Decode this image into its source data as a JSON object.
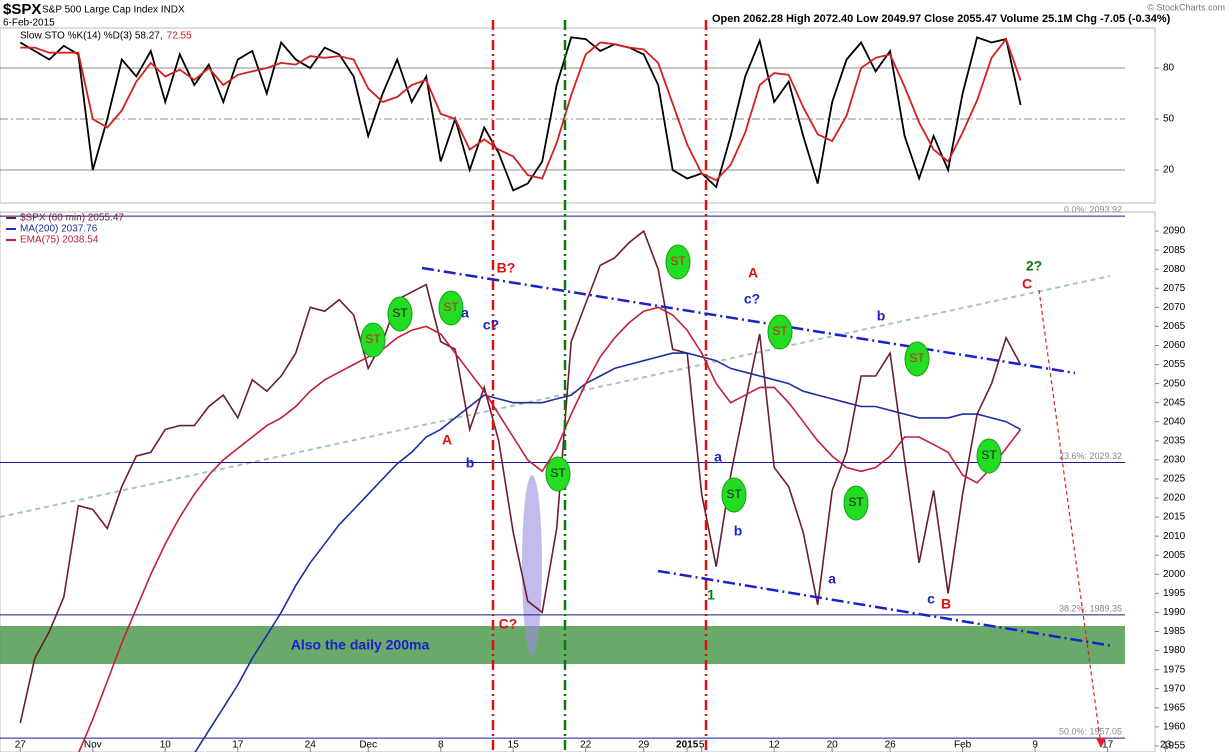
{
  "header": {
    "symbol": "$SPX",
    "name": "S&P 500 Large Cap Index INDX",
    "date": "6-Feb-2015",
    "quote": "Open 2062.28 High 2072.40 Low 2049.97 Close 2055.47 Volume 25.1M Chg -7.05 (-0.34%)",
    "credit": "© StockCharts.com"
  },
  "chart_data": [
    {
      "type": "line",
      "grid": true,
      "x": [
        0,
        1,
        2,
        3,
        4,
        5,
        6,
        7,
        8,
        9,
        10,
        11,
        12,
        13,
        14,
        15,
        16,
        17,
        18,
        19,
        20,
        21,
        22,
        23,
        24,
        25,
        26,
        27,
        28,
        29,
        30,
        31,
        32,
        33,
        34,
        35,
        36,
        37,
        38,
        39,
        40,
        41,
        42,
        43,
        44,
        45,
        46,
        47,
        48,
        49,
        50,
        51,
        52,
        53,
        54,
        55,
        56,
        57,
        58,
        59,
        60,
        61,
        62,
        63,
        64,
        65,
        66,
        67,
        68,
        69
      ],
      "xlim": [
        -1.4,
        76.2
      ],
      "ylim": [
        0.6,
        103.5
      ],
      "yticks": [
        20,
        50,
        80
      ],
      "series": [
        {
          "name": "Slow STO %K(14) %D(3) 58.27,",
          "color": "#000000",
          "values": [
            95,
            90,
            85,
            93,
            88,
            20,
            50,
            85,
            75,
            90,
            60,
            88,
            70,
            82,
            60,
            85,
            90,
            65,
            95,
            85,
            80,
            92,
            88,
            75,
            40,
            65,
            85,
            60,
            75,
            25,
            50,
            20,
            45,
            30,
            8,
            12,
            25,
            70,
            98,
            97,
            90,
            94,
            92,
            88,
            70,
            20,
            15,
            18,
            10,
            40,
            75,
            96,
            60,
            72,
            40,
            12,
            60,
            85,
            95,
            78,
            90,
            40,
            15,
            40,
            20,
            65,
            98,
            95,
            97,
            58.27
          ]
        },
        {
          "name": "72.55",
          "color": "#d42020",
          "values": [
            92,
            92,
            89,
            89,
            89,
            50,
            45,
            55,
            72,
            83,
            75,
            79,
            73,
            80,
            70,
            76,
            78,
            80,
            83,
            82,
            87,
            86,
            87,
            85,
            68,
            60,
            63,
            70,
            73,
            53,
            50,
            32,
            38,
            32,
            28,
            17,
            15,
            36,
            64,
            88,
            95,
            94,
            92,
            91,
            83,
            59,
            35,
            18,
            14,
            23,
            42,
            70,
            77,
            76,
            57,
            41,
            37,
            52,
            80,
            86,
            88,
            69,
            48,
            32,
            25,
            42,
            61,
            86,
            97,
            72.55
          ]
        }
      ]
    },
    {
      "type": "line",
      "grid": false,
      "x": [
        0,
        1,
        2,
        3,
        4,
        5,
        6,
        7,
        8,
        9,
        10,
        11,
        12,
        13,
        14,
        15,
        16,
        17,
        18,
        19,
        20,
        21,
        22,
        23,
        24,
        25,
        26,
        27,
        28,
        29,
        30,
        31,
        32,
        33,
        34,
        35,
        36,
        37,
        38,
        39,
        40,
        41,
        42,
        43,
        44,
        45,
        46,
        47,
        48,
        49,
        50,
        51,
        52,
        53,
        54,
        55,
        56,
        57,
        58,
        59,
        60,
        61,
        62,
        63,
        64,
        65,
        66,
        67,
        68,
        69
      ],
      "xlim": [
        -1.4,
        76.2
      ],
      "ylim": [
        1953.4,
        2095
      ],
      "xticks": [
        {
          "value": 0,
          "label": "27"
        },
        {
          "value": 5,
          "label": "Nov"
        },
        {
          "value": 10,
          "label": "10"
        },
        {
          "value": 15,
          "label": "17"
        },
        {
          "value": 20,
          "label": "24"
        },
        {
          "value": 24,
          "label": "Dec"
        },
        {
          "value": 29,
          "label": "8"
        },
        {
          "value": 34,
          "label": "15"
        },
        {
          "value": 39,
          "label": "22"
        },
        {
          "value": 43,
          "label": "29"
        },
        {
          "value": 46,
          "label": "2015"
        },
        {
          "value": 47,
          "label": "5"
        },
        {
          "value": 52,
          "label": "12"
        },
        {
          "value": 56,
          "label": "20"
        },
        {
          "value": 60,
          "label": "26"
        },
        {
          "value": 65,
          "label": "Feb"
        },
        {
          "value": 70,
          "label": "9"
        },
        {
          "value": 75,
          "label": "17"
        },
        {
          "value": 79,
          "label": "23"
        }
      ],
      "yticks": [
        1955,
        1960,
        1965,
        1970,
        1975,
        1980,
        1985,
        1990,
        1995,
        2000,
        2005,
        2010,
        2015,
        2020,
        2025,
        2030,
        2035,
        2040,
        2045,
        2050,
        2055,
        2060,
        2065,
        2070,
        2075,
        2080,
        2085,
        2090
      ],
      "series": [
        {
          "name": "$SPX (60 min) 2055.47",
          "color": "#6b1f2e",
          "values": [
            1961,
            1978,
            1985,
            1994,
            2018,
            2017,
            2012,
            2023,
            2031,
            2032,
            2038,
            2039,
            2039,
            2044,
            2047,
            2041,
            2051,
            2048,
            2052,
            2058,
            2070,
            2069,
            2072,
            2068,
            2054,
            2061,
            2072,
            2074,
            2076,
            2061,
            2059,
            2038,
            2049,
            2035,
            2011,
            1993,
            1990,
            2012,
            2061,
            2071,
            2081,
            2083,
            2087,
            2090,
            2080,
            2059,
            2058,
            2021,
            2002,
            2026,
            2045,
            2063,
            2028,
            2023,
            2011,
            1992,
            2022,
            2032,
            2052,
            2052,
            2058,
            2030,
            2003,
            2022,
            1995,
            2021,
            2042,
            2050,
            2062,
            2055
          ]
        },
        {
          "name": "MA(200) 2037.76",
          "color": "#1f2e9e",
          "values": [
            null,
            null,
            null,
            null,
            null,
            null,
            null,
            null,
            null,
            null,
            null,
            null,
            1953,
            1959,
            1965,
            1971,
            1978,
            1984,
            1990,
            1997,
            2003,
            2008,
            2013,
            2017,
            2021,
            2025,
            2029,
            2032,
            2036,
            2038,
            2041,
            2044,
            2047,
            2046,
            2045,
            2045,
            2045,
            2046,
            2047,
            2050,
            2052,
            2054,
            2055,
            2056,
            2057,
            2058,
            2058,
            2057,
            2056,
            2054,
            2053,
            2052,
            2051,
            2050,
            2048,
            2047,
            2046,
            2045,
            2044,
            2044,
            2043,
            2042,
            2041,
            2041,
            2041,
            2042,
            2042,
            2041,
            2040,
            2038
          ]
        },
        {
          "name": "EMA(75) 2038.54",
          "color": "#c0203a",
          "values": [
            null,
            null,
            null,
            null,
            1953,
            1962,
            1972,
            1982,
            1991,
            2000,
            2008,
            2015,
            2021,
            2026,
            2030,
            2033,
            2036,
            2039,
            2041,
            2044,
            2048,
            2051,
            2053,
            2055,
            2057,
            2059,
            2062,
            2064,
            2065,
            2063,
            2058,
            2053,
            2048,
            2042,
            2036,
            2030,
            2027,
            2033,
            2042,
            2050,
            2057,
            2062,
            2066,
            2069,
            2070,
            2068,
            2064,
            2058,
            2050,
            2045,
            2047,
            2049,
            2049,
            2045,
            2040,
            2035,
            2031,
            2028,
            2027,
            2028,
            2031,
            2036,
            2036,
            2034,
            2032,
            2026,
            2024,
            2028,
            2033,
            2038
          ]
        }
      ],
      "levels": [
        {
          "value": 2093.92,
          "label": "0.0%: 2093.92"
        },
        {
          "value": 2029.32,
          "label": "23.6%: 2029.32"
        },
        {
          "value": 1989.35,
          "label": "38.2%: 1989.35"
        },
        {
          "value": 1957.05,
          "label": "50.0%: 1957.05"
        }
      ],
      "annotations": [
        "ST",
        "ST",
        "ST",
        "ST",
        "ST",
        "ST",
        "ST",
        "ST",
        "ST",
        "ST",
        "B?",
        "c?",
        "a",
        "A",
        "b",
        "C?",
        "1",
        "a",
        "b",
        "A",
        "c?",
        "a",
        "b",
        "c",
        "B",
        "C",
        "2?",
        "Also the daily 200ma"
      ]
    }
  ]
}
